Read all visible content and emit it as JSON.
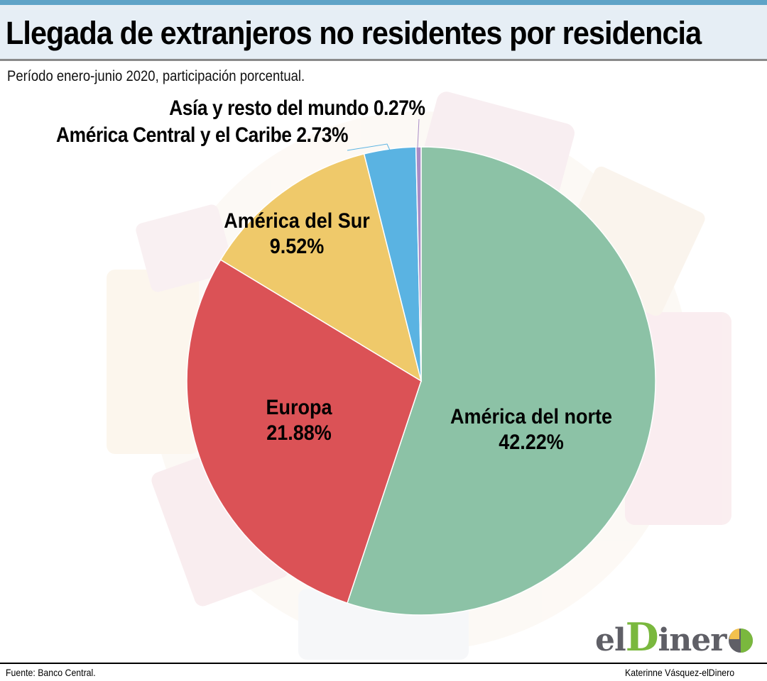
{
  "header": {
    "title": "Llegada de extranjeros no residentes por residencia",
    "subtitle": "Período enero-junio 2020, participación porcentual."
  },
  "chart_data": {
    "type": "pie",
    "title": "Llegada de extranjeros no residentes por residencia",
    "subtitle": "Período enero-junio 2020, participación porcentual.",
    "unit": "%",
    "start": "top, clockwise",
    "slices": [
      {
        "name": "América del norte",
        "value": 42.22,
        "value_label": "42.22%",
        "color": "#8cc2a6"
      },
      {
        "name": "Europa",
        "value": 21.88,
        "value_label": "21.88%",
        "color": "#db5256"
      },
      {
        "name": "América del Sur",
        "value": 9.52,
        "value_label": "9.52%",
        "color": "#efc96a"
      },
      {
        "name": "América Central y el Caribe",
        "value": 2.73,
        "value_label": "2.73%",
        "color": "#5ab3e2"
      },
      {
        "name": "Asía y resto del mundo",
        "value": 0.27,
        "value_label": "0.27%",
        "color": "#a98cc6"
      }
    ]
  },
  "labels": {
    "asia": "Asía y resto del mundo 0.27%",
    "caribe": "América Central y el Caribe 2.73%",
    "sur_name": "América del Sur",
    "sur_value": "9.52%",
    "europa_name": "Europa",
    "europa_value": "21.88%",
    "norte_name": "América del norte",
    "norte_value": "42.22%"
  },
  "footer": {
    "source": "Fuente: Banco Central.",
    "credit": "Katerinne Vásquez-elDinero",
    "logo_text_a": "el",
    "logo_text_b": "D",
    "logo_text_c": "iner"
  },
  "colors": {
    "accent": "#5fa3c7",
    "title_band": "#e6eef5",
    "logo_green": "#7ab83e",
    "logo_yellow": "#f2c14e",
    "logo_gray": "#5f5f66"
  }
}
